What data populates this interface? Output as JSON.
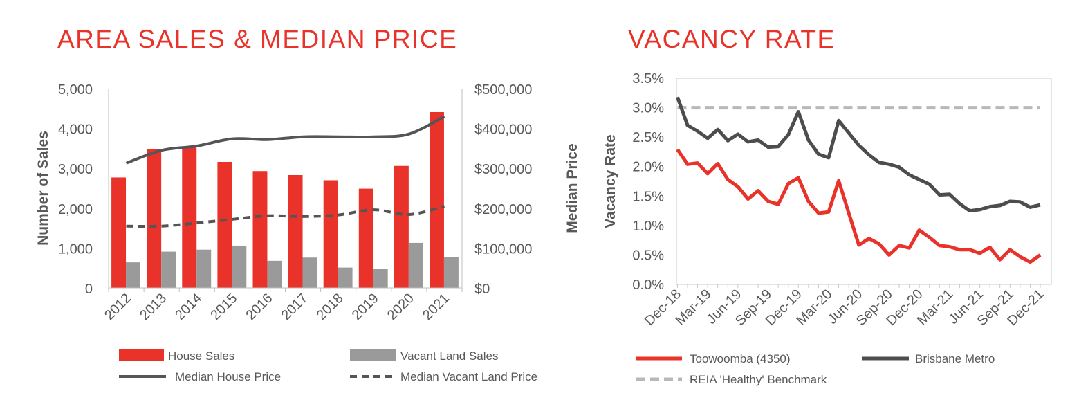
{
  "colors": {
    "title": "#e8322a",
    "house_sales": "#e8322a",
    "vacant_land": "#9a9a9b",
    "median_house": "#555557",
    "median_land": "#555557",
    "toowoomba": "#e8322a",
    "brisbane": "#4d4d4f",
    "benchmark": "#b8b8b8",
    "axis_text": "#595959",
    "gridline": "#d9d9d9"
  },
  "chart_data": [
    {
      "type": "bar",
      "title": "AREA SALES & MEDIAN PRICE",
      "categories": [
        "2012",
        "2013",
        "2014",
        "2015",
        "2016",
        "2017",
        "2018",
        "2019",
        "2020",
        "2021"
      ],
      "ylabel": "Number of Sales",
      "ylabel2": "Median Price",
      "ylim": [
        0,
        5000
      ],
      "ylim2": [
        0,
        500000
      ],
      "yticks": [
        "0",
        "1,000",
        "2,000",
        "3,000",
        "4,000",
        "5,000"
      ],
      "yticks2": [
        "$0",
        "$100,000",
        "$200,000",
        "$300,000",
        "$400,000",
        "$500,000"
      ],
      "series": [
        {
          "name": "House Sales",
          "kind": "bar",
          "values": [
            2770,
            3480,
            3550,
            3160,
            2930,
            2830,
            2700,
            2490,
            3060,
            4410
          ]
        },
        {
          "name": "Vacant Land Sales",
          "kind": "bar",
          "values": [
            640,
            910,
            960,
            1060,
            680,
            760,
            510,
            470,
            1130,
            770
          ]
        },
        {
          "name": "Median House Price",
          "kind": "line",
          "values": [
            313000,
            345000,
            356000,
            374000,
            372000,
            379000,
            379000,
            379000,
            386000,
            430000
          ]
        },
        {
          "name": "Median Vacant Land Price",
          "kind": "line",
          "dashed": true,
          "values": [
            155000,
            155000,
            163000,
            172000,
            181000,
            179000,
            183000,
            196000,
            184000,
            205000
          ]
        }
      ],
      "legend": [
        "House Sales",
        "Vacant Land Sales",
        "Median House Price",
        "Median Vacant Land Price"
      ]
    },
    {
      "type": "line",
      "title": "VACANCY RATE",
      "ylabel": "Vacancy Rate",
      "ylim": [
        0,
        3.5
      ],
      "yticks": [
        "0.0%",
        "0.5%",
        "1.0%",
        "1.5%",
        "2.0%",
        "2.5%",
        "3.0%",
        "3.5%"
      ],
      "x": [
        "Dec-18",
        "Jan-19",
        "Feb-19",
        "Mar-19",
        "Apr-19",
        "May-19",
        "Jun-19",
        "Jul-19",
        "Aug-19",
        "Sep-19",
        "Oct-19",
        "Nov-19",
        "Dec-19",
        "Jan-20",
        "Feb-20",
        "Mar-20",
        "Apr-20",
        "May-20",
        "Jun-20",
        "Jul-20",
        "Aug-20",
        "Sep-20",
        "Oct-20",
        "Nov-20",
        "Dec-20",
        "Jan-21",
        "Feb-21",
        "Mar-21",
        "Apr-21",
        "May-21",
        "Jun-21",
        "Jul-21",
        "Aug-21",
        "Sep-21",
        "Oct-21",
        "Nov-21",
        "Dec-21"
      ],
      "xtick_labels": [
        "Dec-18",
        "Mar-19",
        "Jun-19",
        "Sep-19",
        "Dec-19",
        "Mar-20",
        "Jun-20",
        "Sep-20",
        "Dec-20",
        "Mar-21",
        "Jun-21",
        "Sep-21",
        "Dec-21"
      ],
      "series": [
        {
          "name": "Toowoomba (4350)",
          "values": [
            2.29,
            2.04,
            2.06,
            1.88,
            2.05,
            1.78,
            1.66,
            1.45,
            1.59,
            1.41,
            1.36,
            1.71,
            1.81,
            1.41,
            1.21,
            1.23,
            1.76,
            1.21,
            0.67,
            0.78,
            0.69,
            0.5,
            0.66,
            0.62,
            0.92,
            0.8,
            0.66,
            0.64,
            0.59,
            0.59,
            0.53,
            0.63,
            0.42,
            0.59,
            0.47,
            0.38,
            0.5
          ]
        },
        {
          "name": "Brisbane Metro",
          "values": [
            3.18,
            2.7,
            2.6,
            2.48,
            2.63,
            2.44,
            2.55,
            2.42,
            2.45,
            2.33,
            2.34,
            2.54,
            2.93,
            2.45,
            2.21,
            2.15,
            2.78,
            2.57,
            2.36,
            2.2,
            2.07,
            2.04,
            1.99,
            1.86,
            1.78,
            1.7,
            1.52,
            1.53,
            1.37,
            1.25,
            1.27,
            1.32,
            1.34,
            1.41,
            1.4,
            1.31,
            1.35
          ]
        },
        {
          "name": "REIA 'Healthy' Benchmark",
          "dashed": true,
          "values": [
            3.0,
            3.0,
            3.0,
            3.0,
            3.0,
            3.0,
            3.0,
            3.0,
            3.0,
            3.0,
            3.0,
            3.0,
            3.0,
            3.0,
            3.0,
            3.0,
            3.0,
            3.0,
            3.0,
            3.0,
            3.0,
            3.0,
            3.0,
            3.0,
            3.0,
            3.0,
            3.0,
            3.0,
            3.0,
            3.0,
            3.0,
            3.0,
            3.0,
            3.0,
            3.0,
            3.0,
            3.0
          ]
        }
      ],
      "legend": [
        "Toowoomba (4350)",
        "Brisbane Metro",
        "REIA 'Healthy' Benchmark"
      ]
    }
  ]
}
